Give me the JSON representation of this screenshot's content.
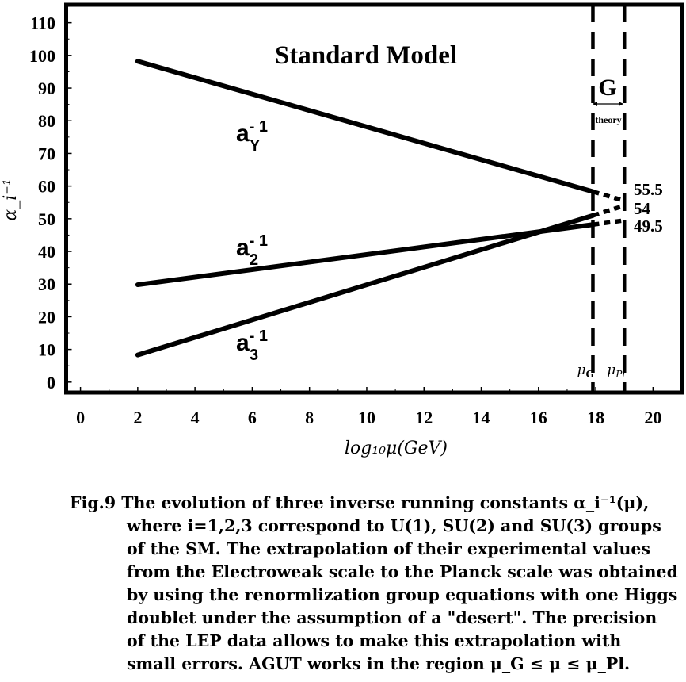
{
  "chart_data": {
    "type": "line",
    "title": "Standard Model",
    "xlabel": "log₁₀μ(GeV)",
    "ylabel": "α_i⁻¹",
    "xlim": [
      -0.5,
      21.0
    ],
    "ylim": [
      -3.2,
      115.5
    ],
    "x_ticks": [
      0,
      2,
      4,
      6,
      8,
      10,
      12,
      14,
      16,
      18,
      20
    ],
    "y_ticks": [
      0,
      10,
      20,
      30,
      40,
      50,
      60,
      70,
      80,
      90,
      100,
      110
    ],
    "grid": false,
    "series": [
      {
        "name": "a_Y^-1",
        "label_base": "a",
        "label_sub": "Y",
        "label_sup": "-1",
        "solid": [
          [
            2,
            98.2
          ],
          [
            17.9,
            58.3
          ]
        ],
        "dotted": [
          [
            17.9,
            58.3
          ],
          [
            19.0,
            55.5
          ]
        ],
        "end_value_label": "55.5"
      },
      {
        "name": "a_2^-1",
        "label_base": "a",
        "label_sub": "2",
        "label_sup": "-1",
        "solid": [
          [
            2,
            29.8
          ],
          [
            17.9,
            48.2
          ]
        ],
        "dotted": [
          [
            17.9,
            48.2
          ],
          [
            19.0,
            49.5
          ]
        ],
        "end_value_label": "49.5"
      },
      {
        "name": "a_3^-1",
        "label_base": "a",
        "label_sub": "3",
        "label_sup": "-1",
        "solid": [
          [
            2,
            8.3
          ],
          [
            17.9,
            51.0
          ]
        ],
        "dotted": [
          [
            17.9,
            51.0
          ],
          [
            19.0,
            54.0
          ]
        ],
        "end_value_label": "54"
      }
    ],
    "vertical_lines": [
      {
        "x": 17.9,
        "style": "dashed",
        "label": "μ_G"
      },
      {
        "x": 19.0,
        "style": "dashed",
        "label": "μ_Pl"
      }
    ],
    "annotations": {
      "g_label": "G",
      "g_sub": "theory"
    }
  },
  "caption": {
    "lines": [
      "Fig.9 The evolution of three inverse running constants α_i⁻¹(μ),",
      "where i=1,2,3 correspond to U(1), SU(2) and SU(3) groups",
      "of the SM. The extrapolation of their experimental values",
      "from the Electroweak scale to the Planck scale was obtained",
      "by using the renormlization group equations with one Higgs",
      "doublet under the assumption of a \"desert\". The precision",
      "of the LEP data allows to make this extrapolation with",
      "small errors. AGUT works in the region μ_G ≤ μ ≤ μ_Pl."
    ]
  }
}
